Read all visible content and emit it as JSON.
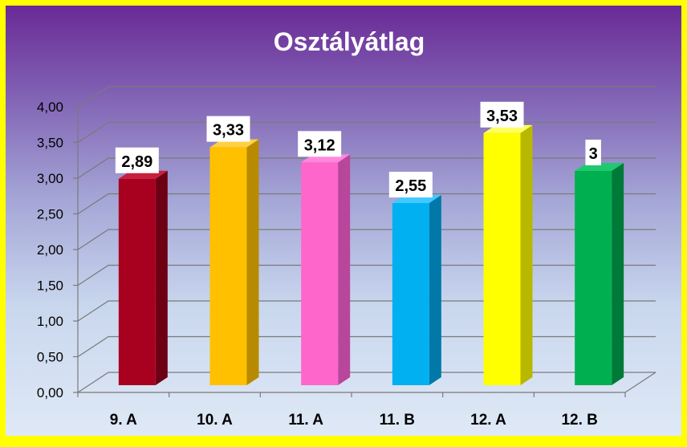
{
  "chart_data": {
    "type": "bar",
    "title": "Osztályátlag",
    "categories": [
      "9. A",
      "10. A",
      "11. A",
      "11. B",
      "12. A",
      "12. B"
    ],
    "values": [
      2.89,
      3.33,
      3.12,
      2.55,
      3.53,
      3
    ],
    "data_labels": [
      "2,89",
      "3,33",
      "3,12",
      "2,55",
      "3,53",
      "3"
    ],
    "y_ticks": [
      "0,00",
      "0,50",
      "1,00",
      "1,50",
      "2,00",
      "2,50",
      "3,00",
      "3,50",
      "4,00"
    ],
    "ylim": [
      0,
      4
    ],
    "grid": true,
    "legend": "none",
    "bar_colors": [
      "#a8001f",
      "#ffc000",
      "#ff66cc",
      "#00b0f0",
      "#ffff00",
      "#00b050"
    ],
    "bar_side_colors": [
      "#6e0014",
      "#b88a00",
      "#b8469a",
      "#0078a8",
      "#b8b800",
      "#007a38"
    ],
    "bar_top_colors": [
      "#c8203c",
      "#ffd040",
      "#ff88dd",
      "#40c8ff",
      "#ffff60",
      "#20c870"
    ]
  }
}
